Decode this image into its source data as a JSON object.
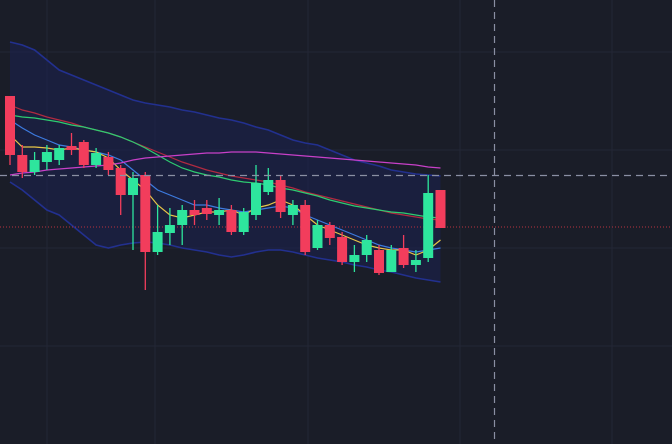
{
  "chart_data": {
    "type": "candlestick",
    "ylim": [
      0,
      444
    ],
    "up_color": "#2ee59d",
    "down_color": "#f23d5c",
    "open": [
      348,
      289,
      272,
      282,
      284,
      298,
      302,
      279,
      287,
      276,
      249,
      269,
      192,
      211,
      219,
      234,
      236,
      229,
      234,
      212,
      229,
      252,
      264,
      229,
      239,
      196,
      219,
      207,
      182,
      189,
      194,
      172,
      196,
      179,
      186,
      254
    ],
    "high": [
      348,
      299,
      292,
      299,
      299,
      311,
      304,
      296,
      292,
      279,
      272,
      272,
      239,
      236,
      239,
      244,
      244,
      246,
      239,
      236,
      279,
      276,
      269,
      244,
      244,
      224,
      222,
      212,
      199,
      209,
      199,
      199,
      209,
      194,
      269,
      254
    ],
    "low": [
      279,
      266,
      269,
      274,
      279,
      289,
      276,
      276,
      269,
      229,
      194,
      154,
      189,
      199,
      199,
      219,
      224,
      219,
      209,
      209,
      224,
      249,
      226,
      219,
      189,
      194,
      199,
      179,
      172,
      182,
      169,
      172,
      176,
      172,
      182,
      216
    ],
    "close": [
      289,
      272,
      284,
      292,
      296,
      294,
      279,
      291,
      274,
      249,
      266,
      192,
      212,
      219,
      234,
      229,
      230,
      234,
      212,
      232,
      261,
      264,
      232,
      239,
      192,
      219,
      206,
      182,
      189,
      204,
      171,
      194,
      179,
      184,
      251,
      216
    ],
    "bands": {
      "color": "#22308f",
      "fill": "#1b2150",
      "upper": [
        402,
        399,
        394,
        384,
        374,
        369,
        364,
        359,
        354,
        349,
        344,
        341,
        339,
        337,
        334,
        332,
        329,
        326,
        324,
        321,
        317,
        314,
        309,
        304,
        301,
        299,
        294,
        289,
        284,
        281,
        278,
        274,
        272,
        270,
        269,
        268
      ],
      "lower": [
        262,
        254,
        244,
        234,
        229,
        219,
        209,
        199,
        196,
        199,
        201,
        202,
        201,
        199,
        196,
        194,
        192,
        189,
        187,
        189,
        192,
        194,
        194,
        192,
        189,
        186,
        184,
        182,
        179,
        177,
        174,
        172,
        169,
        166,
        164,
        162
      ]
    },
    "lines": [
      {
        "color": "#b02a40",
        "values": [
          339,
          334,
          331,
          327,
          324,
          321,
          317,
          314,
          311,
          307,
          302,
          297,
          292,
          287,
          282,
          278,
          274,
          271,
          268,
          266,
          264,
          262,
          259,
          256,
          252,
          249,
          246,
          243,
          240,
          237,
          234,
          231,
          229,
          227,
          225,
          224
        ]
      },
      {
        "color": "#2ecc71",
        "values": [
          329,
          327,
          326,
          324,
          322,
          319,
          317,
          314,
          311,
          307,
          302,
          296,
          289,
          282,
          276,
          272,
          269,
          267,
          264,
          262,
          261,
          259,
          256,
          254,
          251,
          248,
          244,
          241,
          238,
          236,
          234,
          232,
          231,
          229,
          227,
          226
        ]
      },
      {
        "color": "#3d7be0",
        "values": [
          324,
          316,
          309,
          304,
          299,
          297,
          294,
          292,
          289,
          284,
          274,
          264,
          254,
          249,
          244,
          239,
          239,
          236,
          234,
          232,
          234,
          236,
          238,
          236,
          229,
          224,
          219,
          214,
          209,
          204,
          199,
          196,
          194,
          192,
          194,
          196
        ]
      },
      {
        "color": "#e8c547",
        "values": [
          309,
          297,
          297,
          296,
          294,
          296,
          294,
          292,
          286,
          274,
          264,
          254,
          239,
          229,
          226,
          229,
          232,
          232,
          234,
          229,
          236,
          239,
          244,
          239,
          229,
          219,
          214,
          209,
          204,
          199,
          196,
          194,
          194,
          189,
          194,
          204
        ]
      },
      {
        "color": "#c840c8",
        "values": [
          269,
          271,
          272,
          274,
          275,
          276,
          277,
          278,
          279,
          281,
          284,
          286,
          287,
          288,
          289,
          290,
          291,
          291,
          292,
          292,
          292,
          291,
          290,
          289,
          288,
          287,
          286,
          285,
          284,
          283,
          282,
          281,
          280,
          279,
          277,
          276
        ]
      }
    ],
    "price_line": {
      "value": 217,
      "color": "#b8323f"
    }
  }
}
